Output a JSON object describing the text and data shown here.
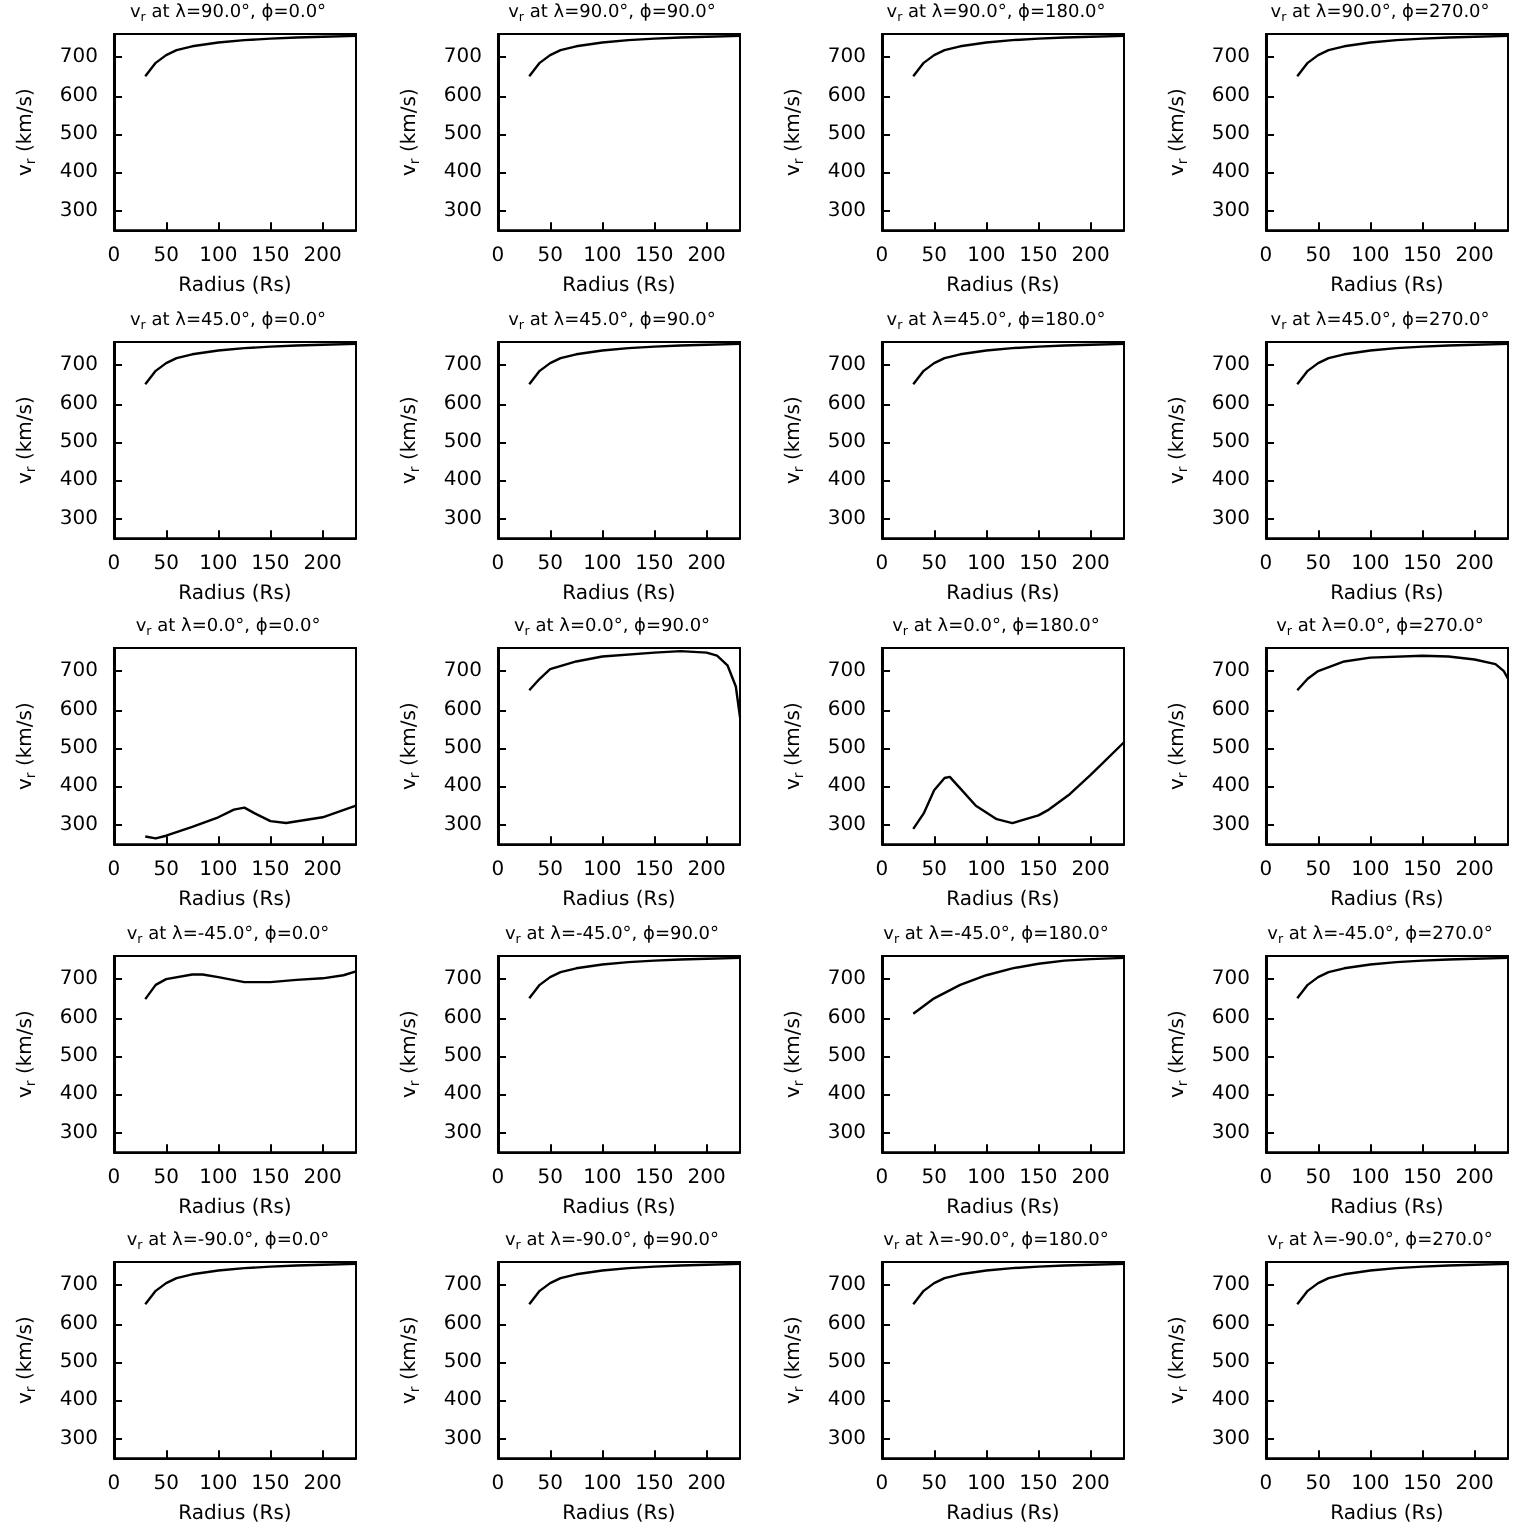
{
  "chart_data": [
    {
      "type": "line",
      "title": "v$_{r}$ at λ=90.0°, ϕ=0.0°",
      "xlabel": "Radius (Rs)",
      "ylabel": "v$_{r}$ (km/s)",
      "x": [
        30,
        40,
        50,
        60,
        75,
        100,
        125,
        150,
        175,
        200,
        232
      ],
      "values": [
        650,
        685,
        705,
        718,
        728,
        738,
        744,
        748,
        751,
        753,
        755
      ],
      "color": "#000000",
      "xlim": [
        0,
        232
      ],
      "ylim": [
        250,
        760
      ],
      "xticks": [
        0,
        50,
        100,
        150,
        200
      ],
      "yticks": [
        300,
        400,
        500,
        600,
        700
      ]
    },
    {
      "type": "line",
      "title": "v$_{r}$ at λ=90.0°, ϕ=90.0°",
      "xlabel": "Radius (Rs)",
      "ylabel": "v$_{r}$ (km/s)",
      "x": [
        30,
        40,
        50,
        60,
        75,
        100,
        125,
        150,
        175,
        200,
        232
      ],
      "values": [
        650,
        685,
        705,
        718,
        728,
        738,
        744,
        748,
        751,
        753,
        755
      ],
      "color": "#000000",
      "xlim": [
        0,
        232
      ],
      "ylim": [
        250,
        760
      ],
      "xticks": [
        0,
        50,
        100,
        150,
        200
      ],
      "yticks": [
        300,
        400,
        500,
        600,
        700
      ]
    },
    {
      "type": "line",
      "title": "v$_{r}$ at λ=90.0°, ϕ=180.0°",
      "xlabel": "Radius (Rs)",
      "ylabel": "v$_{r}$ (km/s)",
      "x": [
        30,
        40,
        50,
        60,
        75,
        100,
        125,
        150,
        175,
        200,
        232
      ],
      "values": [
        650,
        685,
        705,
        718,
        728,
        738,
        744,
        748,
        751,
        753,
        755
      ],
      "color": "#000000",
      "xlim": [
        0,
        232
      ],
      "ylim": [
        250,
        760
      ],
      "xticks": [
        0,
        50,
        100,
        150,
        200
      ],
      "yticks": [
        300,
        400,
        500,
        600,
        700
      ]
    },
    {
      "type": "line",
      "title": "v$_{r}$ at λ=90.0°, ϕ=270.0°",
      "xlabel": "Radius (Rs)",
      "ylabel": "v$_{r}$ (km/s)",
      "x": [
        30,
        40,
        50,
        60,
        75,
        100,
        125,
        150,
        175,
        200,
        232
      ],
      "values": [
        650,
        685,
        705,
        718,
        728,
        738,
        744,
        748,
        751,
        753,
        755
      ],
      "color": "#000000",
      "xlim": [
        0,
        232
      ],
      "ylim": [
        250,
        760
      ],
      "xticks": [
        0,
        50,
        100,
        150,
        200
      ],
      "yticks": [
        300,
        400,
        500,
        600,
        700
      ]
    },
    {
      "type": "line",
      "title": "v$_{r}$ at λ=45.0°, ϕ=0.0°",
      "xlabel": "Radius (Rs)",
      "ylabel": "v$_{r}$ (km/s)",
      "x": [
        30,
        40,
        50,
        60,
        75,
        100,
        125,
        150,
        175,
        200,
        232
      ],
      "values": [
        650,
        685,
        705,
        718,
        728,
        738,
        744,
        748,
        751,
        753,
        755
      ],
      "color": "#000000",
      "xlim": [
        0,
        232
      ],
      "ylim": [
        250,
        760
      ],
      "xticks": [
        0,
        50,
        100,
        150,
        200
      ],
      "yticks": [
        300,
        400,
        500,
        600,
        700
      ]
    },
    {
      "type": "line",
      "title": "v$_{r}$ at λ=45.0°, ϕ=90.0°",
      "xlabel": "Radius (Rs)",
      "ylabel": "v$_{r}$ (km/s)",
      "x": [
        30,
        40,
        50,
        60,
        75,
        100,
        125,
        150,
        175,
        200,
        232
      ],
      "values": [
        650,
        685,
        705,
        718,
        728,
        738,
        744,
        748,
        751,
        753,
        755
      ],
      "color": "#000000",
      "xlim": [
        0,
        232
      ],
      "ylim": [
        250,
        760
      ],
      "xticks": [
        0,
        50,
        100,
        150,
        200
      ],
      "yticks": [
        300,
        400,
        500,
        600,
        700
      ]
    },
    {
      "type": "line",
      "title": "v$_{r}$ at λ=45.0°, ϕ=180.0°",
      "xlabel": "Radius (Rs)",
      "ylabel": "v$_{r}$ (km/s)",
      "x": [
        30,
        40,
        50,
        60,
        75,
        100,
        125,
        150,
        175,
        200,
        232
      ],
      "values": [
        650,
        685,
        705,
        718,
        728,
        738,
        744,
        748,
        751,
        753,
        755
      ],
      "color": "#000000",
      "xlim": [
        0,
        232
      ],
      "ylim": [
        250,
        760
      ],
      "xticks": [
        0,
        50,
        100,
        150,
        200
      ],
      "yticks": [
        300,
        400,
        500,
        600,
        700
      ]
    },
    {
      "type": "line",
      "title": "v$_{r}$ at λ=45.0°, ϕ=270.0°",
      "xlabel": "Radius (Rs)",
      "ylabel": "v$_{r}$ (km/s)",
      "x": [
        30,
        40,
        50,
        60,
        75,
        100,
        125,
        150,
        175,
        200,
        232
      ],
      "values": [
        650,
        685,
        705,
        718,
        728,
        738,
        744,
        748,
        751,
        753,
        755
      ],
      "color": "#000000",
      "xlim": [
        0,
        232
      ],
      "ylim": [
        250,
        760
      ],
      "xticks": [
        0,
        50,
        100,
        150,
        200
      ],
      "yticks": [
        300,
        400,
        500,
        600,
        700
      ]
    },
    {
      "type": "line",
      "title": "v$_{r}$ at λ=0.0°, ϕ=0.0°",
      "xlabel": "Radius (Rs)",
      "ylabel": "v$_{r}$ (km/s)",
      "x": [
        30,
        40,
        50,
        75,
        100,
        115,
        125,
        135,
        150,
        165,
        200,
        232
      ],
      "values": [
        270,
        265,
        272,
        295,
        320,
        340,
        345,
        330,
        310,
        305,
        320,
        350
      ],
      "color": "#000000",
      "xlim": [
        0,
        232
      ],
      "ylim": [
        250,
        760
      ],
      "xticks": [
        0,
        50,
        100,
        150,
        200
      ],
      "yticks": [
        300,
        400,
        500,
        600,
        700
      ]
    },
    {
      "type": "line",
      "title": "v$_{r}$ at λ=0.0°, ϕ=90.0°",
      "xlabel": "Radius (Rs)",
      "ylabel": "v$_{r}$ (km/s)",
      "x": [
        30,
        40,
        50,
        75,
        100,
        150,
        175,
        200,
        210,
        220,
        228,
        232
      ],
      "values": [
        650,
        680,
        705,
        725,
        738,
        748,
        752,
        748,
        740,
        715,
        660,
        580
      ],
      "color": "#000000",
      "xlim": [
        0,
        232
      ],
      "ylim": [
        250,
        760
      ],
      "xticks": [
        0,
        50,
        100,
        150,
        200
      ],
      "yticks": [
        300,
        400,
        500,
        600,
        700
      ]
    },
    {
      "type": "line",
      "title": "v$_{r}$ at λ=0.0°, ϕ=180.0°",
      "xlabel": "Radius (Rs)",
      "ylabel": "v$_{r}$ (km/s)",
      "x": [
        30,
        40,
        50,
        60,
        65,
        75,
        90,
        110,
        125,
        150,
        160,
        180,
        200,
        232
      ],
      "values": [
        290,
        330,
        390,
        422,
        425,
        395,
        350,
        315,
        305,
        325,
        340,
        380,
        430,
        515
      ],
      "color": "#000000",
      "xlim": [
        0,
        232
      ],
      "ylim": [
        250,
        760
      ],
      "xticks": [
        0,
        50,
        100,
        150,
        200
      ],
      "yticks": [
        300,
        400,
        500,
        600,
        700
      ]
    },
    {
      "type": "line",
      "title": "v$_{r}$ at λ=0.0°, ϕ=270.0°",
      "xlabel": "Radius (Rs)",
      "ylabel": "v$_{r}$ (km/s)",
      "x": [
        30,
        40,
        50,
        75,
        100,
        150,
        175,
        200,
        220,
        228,
        232
      ],
      "values": [
        650,
        680,
        700,
        725,
        735,
        740,
        738,
        730,
        718,
        700,
        680
      ],
      "color": "#000000",
      "xlim": [
        0,
        232
      ],
      "ylim": [
        250,
        760
      ],
      "xticks": [
        0,
        50,
        100,
        150,
        200
      ],
      "yticks": [
        300,
        400,
        500,
        600,
        700
      ]
    },
    {
      "type": "line",
      "title": "v$_{r}$ at λ=-45.0°, ϕ=0.0°",
      "xlabel": "Radius (Rs)",
      "ylabel": "v$_{r}$ (km/s)",
      "x": [
        30,
        40,
        50,
        75,
        85,
        100,
        125,
        150,
        175,
        200,
        220,
        232
      ],
      "values": [
        648,
        685,
        700,
        712,
        712,
        705,
        692,
        692,
        698,
        702,
        710,
        720
      ],
      "color": "#000000",
      "xlim": [
        0,
        232
      ],
      "ylim": [
        250,
        760
      ],
      "xticks": [
        0,
        50,
        100,
        150,
        200
      ],
      "yticks": [
        300,
        400,
        500,
        600,
        700
      ]
    },
    {
      "type": "line",
      "title": "v$_{r}$ at λ=-45.0°, ϕ=90.0°",
      "xlabel": "Radius (Rs)",
      "ylabel": "v$_{r}$ (km/s)",
      "x": [
        30,
        40,
        50,
        60,
        75,
        100,
        125,
        150,
        175,
        200,
        232
      ],
      "values": [
        650,
        685,
        705,
        718,
        728,
        738,
        744,
        748,
        751,
        753,
        755
      ],
      "color": "#000000",
      "xlim": [
        0,
        232
      ],
      "ylim": [
        250,
        760
      ],
      "xticks": [
        0,
        50,
        100,
        150,
        200
      ],
      "yticks": [
        300,
        400,
        500,
        600,
        700
      ]
    },
    {
      "type": "line",
      "title": "v$_{r}$ at λ=-45.0°, ϕ=180.0°",
      "xlabel": "Radius (Rs)",
      "ylabel": "v$_{r}$ (km/s)",
      "x": [
        30,
        50,
        75,
        100,
        125,
        150,
        175,
        200,
        232
      ],
      "values": [
        610,
        650,
        685,
        710,
        728,
        740,
        748,
        752,
        755
      ],
      "color": "#000000",
      "xlim": [
        0,
        232
      ],
      "ylim": [
        250,
        760
      ],
      "xticks": [
        0,
        50,
        100,
        150,
        200
      ],
      "yticks": [
        300,
        400,
        500,
        600,
        700
      ]
    },
    {
      "type": "line",
      "title": "v$_{r}$ at λ=-45.0°, ϕ=270.0°",
      "xlabel": "Radius (Rs)",
      "ylabel": "v$_{r}$ (km/s)",
      "x": [
        30,
        40,
        50,
        60,
        75,
        100,
        125,
        150,
        175,
        200,
        232
      ],
      "values": [
        650,
        685,
        705,
        718,
        728,
        738,
        744,
        748,
        751,
        753,
        755
      ],
      "color": "#000000",
      "xlim": [
        0,
        232
      ],
      "ylim": [
        250,
        760
      ],
      "xticks": [
        0,
        50,
        100,
        150,
        200
      ],
      "yticks": [
        300,
        400,
        500,
        600,
        700
      ]
    },
    {
      "type": "line",
      "title": "v$_{r}$ at λ=-90.0°, ϕ=0.0°",
      "xlabel": "Radius (Rs)",
      "ylabel": "v$_{r}$ (km/s)",
      "x": [
        30,
        40,
        50,
        60,
        75,
        100,
        125,
        150,
        175,
        200,
        232
      ],
      "values": [
        650,
        685,
        705,
        718,
        728,
        738,
        744,
        748,
        751,
        753,
        755
      ],
      "color": "#000000",
      "xlim": [
        0,
        232
      ],
      "ylim": [
        250,
        760
      ],
      "xticks": [
        0,
        50,
        100,
        150,
        200
      ],
      "yticks": [
        300,
        400,
        500,
        600,
        700
      ]
    },
    {
      "type": "line",
      "title": "v$_{r}$ at λ=-90.0°, ϕ=90.0°",
      "xlabel": "Radius (Rs)",
      "ylabel": "v$_{r}$ (km/s)",
      "x": [
        30,
        40,
        50,
        60,
        75,
        100,
        125,
        150,
        175,
        200,
        232
      ],
      "values": [
        650,
        685,
        705,
        718,
        728,
        738,
        744,
        748,
        751,
        753,
        755
      ],
      "color": "#000000",
      "xlim": [
        0,
        232
      ],
      "ylim": [
        250,
        760
      ],
      "xticks": [
        0,
        50,
        100,
        150,
        200
      ],
      "yticks": [
        300,
        400,
        500,
        600,
        700
      ]
    },
    {
      "type": "line",
      "title": "v$_{r}$ at λ=-90.0°, ϕ=180.0°",
      "xlabel": "Radius (Rs)",
      "ylabel": "v$_{r}$ (km/s)",
      "x": [
        30,
        40,
        50,
        60,
        75,
        100,
        125,
        150,
        175,
        200,
        232
      ],
      "values": [
        650,
        685,
        705,
        718,
        728,
        738,
        744,
        748,
        751,
        753,
        755
      ],
      "color": "#000000",
      "xlim": [
        0,
        232
      ],
      "ylim": [
        250,
        760
      ],
      "xticks": [
        0,
        50,
        100,
        150,
        200
      ],
      "yticks": [
        300,
        400,
        500,
        600,
        700
      ]
    },
    {
      "type": "line",
      "title": "v$_{r}$ at λ=-90.0°, ϕ=270.0°",
      "xlabel": "Radius (Rs)",
      "ylabel": "v$_{r}$ (km/s)",
      "x": [
        30,
        40,
        50,
        60,
        75,
        100,
        125,
        150,
        175,
        200,
        232
      ],
      "values": [
        650,
        685,
        705,
        718,
        728,
        738,
        744,
        748,
        751,
        753,
        755
      ],
      "color": "#000000",
      "xlim": [
        0,
        232
      ],
      "ylim": [
        250,
        760
      ],
      "xticks": [
        0,
        50,
        100,
        150,
        200
      ],
      "yticks": [
        300,
        400,
        500,
        600,
        700
      ]
    }
  ]
}
